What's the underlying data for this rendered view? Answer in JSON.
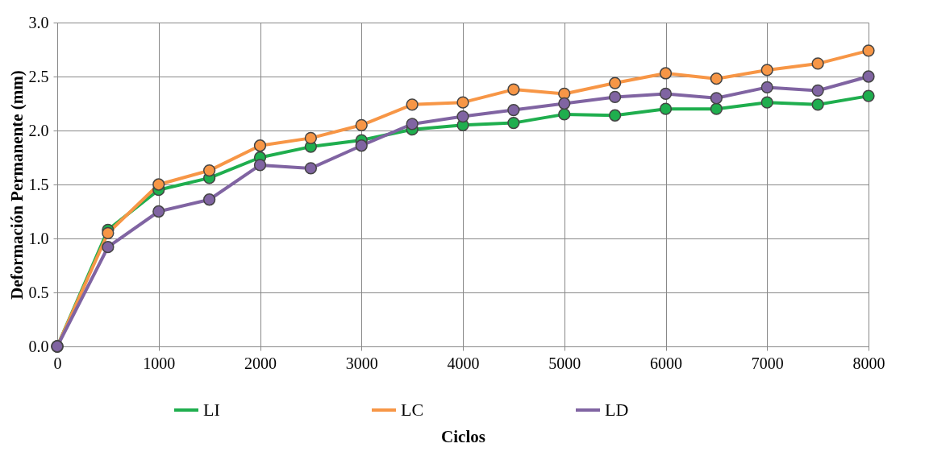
{
  "chart_data": {
    "type": "line",
    "xlabel": "Ciclos",
    "ylabel": "Deformación Permanente (mm)",
    "x": [
      0,
      500,
      1000,
      1500,
      2000,
      2500,
      3000,
      3500,
      4000,
      4500,
      5000,
      5500,
      6000,
      6500,
      7000,
      7500,
      8000
    ],
    "series": [
      {
        "name": "LI",
        "color": "#1fae4e",
        "values": [
          0,
          1.08,
          1.45,
          1.56,
          1.75,
          1.85,
          1.91,
          2.01,
          2.05,
          2.07,
          2.15,
          2.14,
          2.2,
          2.2,
          2.26,
          2.24,
          2.32
        ]
      },
      {
        "name": "LC",
        "color": "#f79646",
        "values": [
          0,
          1.05,
          1.5,
          1.63,
          1.86,
          1.93,
          2.05,
          2.24,
          2.26,
          2.38,
          2.34,
          2.44,
          2.53,
          2.48,
          2.56,
          2.62,
          2.74
        ]
      },
      {
        "name": "LD",
        "color": "#8064a2",
        "values": [
          0,
          0.92,
          1.25,
          1.36,
          1.68,
          1.65,
          1.86,
          2.06,
          2.13,
          2.19,
          2.25,
          2.31,
          2.34,
          2.3,
          2.4,
          2.37,
          2.5
        ]
      }
    ],
    "xlim": [
      0,
      8000
    ],
    "xticks": [
      0,
      1000,
      2000,
      3000,
      4000,
      5000,
      6000,
      7000,
      8000
    ],
    "ylim": [
      0,
      3
    ],
    "yticks": [
      {
        "value": 0,
        "label": "0.0"
      },
      0.5,
      {
        "value": 1,
        "label": "1.0"
      },
      1.5,
      {
        "value": 2,
        "label": "2.0"
      },
      2.5,
      {
        "value": 3,
        "label": "3.0"
      }
    ],
    "grid": true,
    "legend": "bottom",
    "marker": "circle",
    "line_style": "solid"
  }
}
